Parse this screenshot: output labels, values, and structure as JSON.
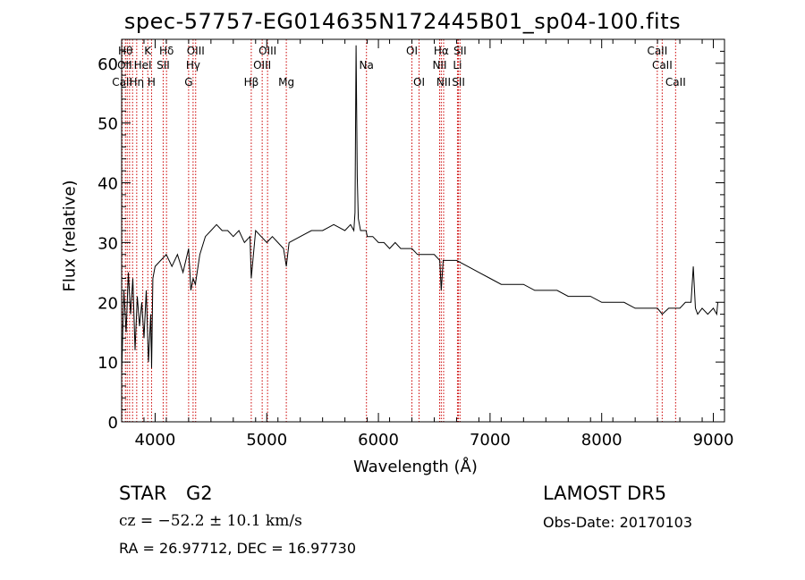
{
  "title": "spec-57757-EG014635N172445B01_sp04-100.fits",
  "info": {
    "object_class": "STAR",
    "subclass": "G2",
    "survey": "LAMOST  DR5",
    "cz": "cz = −52.2 ± 10.1 km/s",
    "obs_date": "Obs-Date: 20170103",
    "radec": "RA =  26.97712, DEC =  16.97730"
  },
  "chart_data": {
    "type": "line",
    "title": "spec-57757-EG014635N172445B01_sp04-100.fits",
    "xlabel": "Wavelength (Å)",
    "ylabel": "Flux (relative)",
    "xlim": [
      3700,
      9100
    ],
    "ylim": [
      0,
      64
    ],
    "xticks": [
      4000,
      5000,
      6000,
      7000,
      8000,
      9000
    ],
    "yticks": [
      0,
      10,
      20,
      30,
      40,
      50,
      60
    ],
    "line_color": "#000000",
    "marker_color": "#cc0000",
    "spectrum": {
      "x": [
        3700,
        3720,
        3740,
        3760,
        3780,
        3800,
        3820,
        3840,
        3860,
        3880,
        3900,
        3920,
        3940,
        3960,
        3968,
        3980,
        4000,
        4050,
        4100,
        4150,
        4200,
        4250,
        4300,
        4320,
        4340,
        4360,
        4400,
        4450,
        4500,
        4550,
        4600,
        4650,
        4700,
        4750,
        4800,
        4850,
        4861,
        4900,
        4950,
        5000,
        5050,
        5100,
        5150,
        5175,
        5200,
        5300,
        5400,
        5500,
        5600,
        5700,
        5750,
        5780,
        5790,
        5800,
        5810,
        5820,
        5840,
        5860,
        5890,
        5900,
        5950,
        6000,
        6050,
        6100,
        6150,
        6200,
        6250,
        6300,
        6350,
        6400,
        6450,
        6500,
        6550,
        6563,
        6580,
        6600,
        6700,
        6800,
        6900,
        7000,
        7100,
        7200,
        7300,
        7400,
        7500,
        7600,
        7700,
        7800,
        7900,
        8000,
        8100,
        8200,
        8300,
        8400,
        8500,
        8542,
        8600,
        8662,
        8700,
        8750,
        8800,
        8820,
        8840,
        8860,
        8900,
        8950,
        9000,
        9030,
        9040
      ],
      "y": [
        8,
        22,
        15,
        25,
        18,
        24,
        12,
        21,
        16,
        20,
        14,
        22,
        10,
        18,
        9,
        24,
        26,
        27,
        28,
        26,
        28,
        25,
        29,
        22,
        24,
        23,
        28,
        31,
        32,
        33,
        32,
        32,
        31,
        32,
        30,
        31,
        24,
        32,
        31,
        30,
        31,
        30,
        29,
        26,
        30,
        31,
        32,
        32,
        33,
        32,
        33,
        32,
        35,
        63,
        41,
        34,
        32,
        32,
        32,
        31,
        31,
        30,
        30,
        29,
        30,
        29,
        29,
        29,
        28,
        28,
        28,
        28,
        27,
        22,
        27,
        27,
        27,
        26,
        25,
        24,
        23,
        23,
        23,
        22,
        22,
        22,
        21,
        21,
        21,
        20,
        20,
        20,
        19,
        19,
        19,
        18,
        19,
        19,
        19,
        20,
        20,
        26,
        19,
        18,
        19,
        18,
        19,
        18,
        20
      ]
    },
    "line_markers": [
      {
        "x": 3705,
        "label": "CaII"
      },
      {
        "x": 3734,
        "label": "Hθ"
      },
      {
        "x": 3750,
        "label": "OII"
      },
      {
        "x": 3771,
        "label": "Hη"
      },
      {
        "x": 3798,
        "label": "Hθ"
      },
      {
        "x": 3835,
        "label": "Hη"
      },
      {
        "x": 3889,
        "label": "HeI"
      },
      {
        "x": 3934,
        "label": "K"
      },
      {
        "x": 3968,
        "label": "H"
      },
      {
        "x": 4072,
        "label": "SII"
      },
      {
        "x": 4102,
        "label": "Hδ"
      },
      {
        "x": 4300,
        "label": "G"
      },
      {
        "x": 4340,
        "label": "Hγ"
      },
      {
        "x": 4363,
        "label": "OIII"
      },
      {
        "x": 4861,
        "label": "Hβ"
      },
      {
        "x": 4959,
        "label": "OIII"
      },
      {
        "x": 5007,
        "label": "OIII"
      },
      {
        "x": 5175,
        "label": "Mg"
      },
      {
        "x": 5893,
        "label": "Na"
      },
      {
        "x": 6300,
        "label": "OI"
      },
      {
        "x": 6364,
        "label": "OI"
      },
      {
        "x": 6548,
        "label": "NII"
      },
      {
        "x": 6563,
        "label": "Hα"
      },
      {
        "x": 6584,
        "label": "NII"
      },
      {
        "x": 6708,
        "label": "Li"
      },
      {
        "x": 6717,
        "label": "SII"
      },
      {
        "x": 6731,
        "label": "SII"
      },
      {
        "x": 8498,
        "label": "CaII"
      },
      {
        "x": 8542,
        "label": "CaII"
      },
      {
        "x": 8662,
        "label": "CaII"
      }
    ],
    "marker_labels": [
      {
        "text": "Hθ",
        "x": 3734,
        "row": 0
      },
      {
        "text": "K",
        "x": 3934,
        "row": 0
      },
      {
        "text": "Hδ",
        "x": 4102,
        "row": 0
      },
      {
        "text": "OIII",
        "x": 4363,
        "row": 0
      },
      {
        "text": "OIII",
        "x": 5007,
        "row": 0
      },
      {
        "text": "OI",
        "x": 6300,
        "row": 0
      },
      {
        "text": "Hα",
        "x": 6563,
        "row": 0
      },
      {
        "text": "SII",
        "x": 6731,
        "row": 0
      },
      {
        "text": "CaII",
        "x": 8498,
        "row": 0
      },
      {
        "text": "OII",
        "x": 3727,
        "row": 1
      },
      {
        "text": "HeI",
        "x": 3889,
        "row": 1
      },
      {
        "text": "SII",
        "x": 4072,
        "row": 1
      },
      {
        "text": "Hγ",
        "x": 4340,
        "row": 1
      },
      {
        "text": "OIII",
        "x": 4959,
        "row": 1
      },
      {
        "text": "NII",
        "x": 6548,
        "row": 1
      },
      {
        "text": "Li",
        "x": 6708,
        "row": 1
      },
      {
        "text": "CaII",
        "x": 8542,
        "row": 1
      },
      {
        "text": "Na",
        "x": 5893,
        "row": 1
      },
      {
        "text": "CaII",
        "x": 3705,
        "row": 2
      },
      {
        "text": "Hη",
        "x": 3835,
        "row": 2
      },
      {
        "text": "H",
        "x": 3968,
        "row": 2
      },
      {
        "text": "G",
        "x": 4300,
        "row": 2
      },
      {
        "text": "Hβ",
        "x": 4861,
        "row": 2
      },
      {
        "text": "Mg",
        "x": 5175,
        "row": 2
      },
      {
        "text": "OI",
        "x": 6364,
        "row": 2
      },
      {
        "text": "NII",
        "x": 6584,
        "row": 2
      },
      {
        "text": "SII",
        "x": 6717,
        "row": 2
      },
      {
        "text": "CaII",
        "x": 8662,
        "row": 2
      }
    ]
  }
}
